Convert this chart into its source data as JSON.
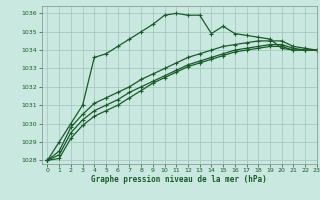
{
  "title": "Graphe pression niveau de la mer (hPa)",
  "bg_color": "#c8e8e0",
  "grid_color": "#a0c4bc",
  "line_color": "#1a5c28",
  "xlim": [
    -0.5,
    23
  ],
  "ylim": [
    1027.8,
    1036.4
  ],
  "yticks": [
    1028,
    1029,
    1030,
    1031,
    1032,
    1033,
    1034,
    1035,
    1036
  ],
  "xticks": [
    0,
    1,
    2,
    3,
    4,
    5,
    6,
    7,
    8,
    9,
    10,
    11,
    12,
    13,
    14,
    15,
    16,
    17,
    18,
    19,
    20,
    21,
    22,
    23
  ],
  "series1_x": [
    0,
    1,
    2,
    3,
    4,
    5,
    6,
    7,
    8,
    9,
    10,
    11,
    12,
    13,
    14,
    15,
    16,
    17,
    18,
    19,
    20,
    21,
    22,
    23
  ],
  "series1_y": [
    1028.0,
    1029.0,
    1030.0,
    1031.0,
    1033.6,
    1033.8,
    1034.2,
    1034.6,
    1035.0,
    1035.4,
    1035.9,
    1036.0,
    1035.9,
    1035.9,
    1034.9,
    1035.3,
    1034.9,
    1034.8,
    1034.7,
    1034.6,
    1034.1,
    1034.0,
    1034.0,
    1034.0
  ],
  "series2_x": [
    0,
    1,
    2,
    3,
    4,
    5,
    6,
    7,
    8,
    9,
    10,
    11,
    12,
    13,
    14,
    15,
    16,
    17,
    18,
    19,
    20,
    21,
    22,
    23
  ],
  "series2_y": [
    1028.0,
    1028.5,
    1029.8,
    1030.5,
    1031.1,
    1031.4,
    1031.7,
    1032.0,
    1032.4,
    1032.7,
    1033.0,
    1033.3,
    1033.6,
    1033.8,
    1034.0,
    1034.2,
    1034.3,
    1034.4,
    1034.5,
    1034.5,
    1034.5,
    1034.2,
    1034.1,
    1034.0
  ],
  "series3_x": [
    0,
    1,
    2,
    3,
    4,
    5,
    6,
    7,
    8,
    9,
    10,
    11,
    12,
    13,
    14,
    15,
    16,
    17,
    18,
    19,
    20,
    21,
    22,
    23
  ],
  "series3_y": [
    1028.0,
    1028.3,
    1029.5,
    1030.2,
    1030.7,
    1031.0,
    1031.3,
    1031.7,
    1032.0,
    1032.3,
    1032.6,
    1032.9,
    1033.2,
    1033.4,
    1033.6,
    1033.8,
    1034.0,
    1034.1,
    1034.2,
    1034.3,
    1034.3,
    1034.1,
    1034.0,
    1034.0
  ],
  "series4_x": [
    0,
    1,
    2,
    3,
    4,
    5,
    6,
    7,
    8,
    9,
    10,
    11,
    12,
    13,
    14,
    15,
    16,
    17,
    18,
    19,
    20,
    21,
    22,
    23
  ],
  "series4_y": [
    1028.0,
    1028.1,
    1029.2,
    1029.9,
    1030.4,
    1030.7,
    1031.0,
    1031.4,
    1031.8,
    1032.2,
    1032.5,
    1032.8,
    1033.1,
    1033.3,
    1033.5,
    1033.7,
    1033.9,
    1034.0,
    1034.1,
    1034.2,
    1034.2,
    1034.0,
    1034.0,
    1034.0
  ]
}
